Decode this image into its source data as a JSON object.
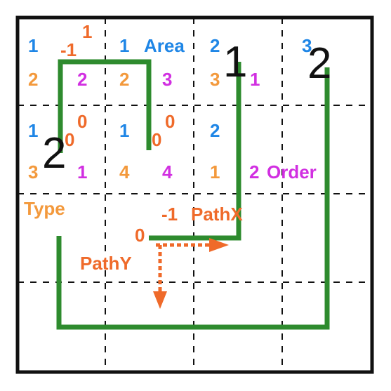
{
  "colors": {
    "blue": "#1f86e6",
    "orange": "#f3993c",
    "magenta": "#d12fe1",
    "red_orange": "#ef6a2a",
    "green": "#2e8b2e",
    "grid": "#111111"
  },
  "cells": {
    "r0c0_area": "1",
    "r0c0_type": "2",
    "r0c0_pathx": "-1",
    "r0c0_pathy": "1",
    "r0c1_area": "1",
    "r0c1_type": "2",
    "r0c1_order": "2",
    "r0c2_area": "2",
    "r0c2_type": "3",
    "r0c2_order": "3",
    "r0c2_number": "1",
    "r0c3_area": "3",
    "r0c3_order": "1",
    "r1c0_area": "1",
    "r1c0_pathy": "0",
    "r1c0_pathx": "0",
    "r1c0_type": "3",
    "r1c0_order": "1",
    "r1c1_area": "1",
    "r1c1_pathx": "0",
    "r1c1_pathy": "0",
    "r1c1_type": "4",
    "r1c1_order": "4",
    "r1c2_area": "2",
    "r1c2_type": "1",
    "r1c2_order": "2",
    "r2c1_pathx": "-1",
    "r2c1_pathy": "0",
    "big_a": "1",
    "big_b": "2",
    "big_c": "2"
  },
  "legend": {
    "area": "Area",
    "order": "Order",
    "type": "Type",
    "pathx": "PathX",
    "pathy": "PathY"
  }
}
